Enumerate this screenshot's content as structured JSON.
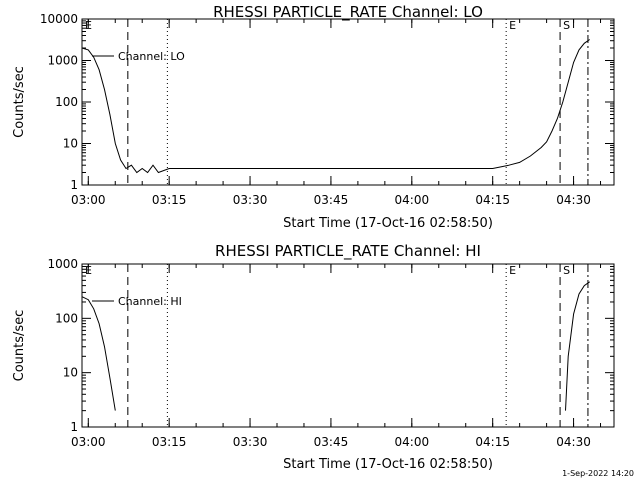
{
  "chart_data": [
    {
      "type": "line",
      "title": "RHESSI PARTICLE_RATE Channel: LO",
      "xlabel": "Start Time (17-Oct-16 02:58:50)",
      "ylabel": "Counts/sec",
      "yscale": "log",
      "ylim": [
        1,
        10000
      ],
      "xlim": [
        "02:58:50",
        "04:37:30"
      ],
      "x_ticks": [
        "03:00",
        "03:15",
        "03:30",
        "03:45",
        "04:00",
        "04:15",
        "04:30"
      ],
      "y_ticks": [
        "1",
        "10",
        "100",
        "1000",
        "10000"
      ],
      "legend": {
        "position": "top-left",
        "entries": [
          "Channel: LO"
        ]
      },
      "series": [
        {
          "name": "Channel: LO",
          "x": [
            "02:58:50",
            "03:00:00",
            "03:01:00",
            "03:02:00",
            "03:03:00",
            "03:04:00",
            "03:05:00",
            "03:06:00",
            "03:07:00",
            "03:08:00",
            "03:09:00",
            "03:10:00",
            "03:11:00",
            "03:12:00",
            "03:13:00",
            "03:15:00",
            "03:20:00",
            "03:25:00",
            "03:30:00",
            "03:35:00",
            "03:40:00",
            "03:45:00",
            "03:50:00",
            "03:55:00",
            "04:00:00",
            "04:05:00",
            "04:10:00",
            "04:15:00",
            "04:18:00",
            "04:20:00",
            "04:22:00",
            "04:24:00",
            "04:25:00",
            "04:26:00",
            "04:27:00",
            "04:28:00",
            "04:29:00",
            "04:30:00",
            "04:31:00",
            "04:32:00",
            "04:33:00"
          ],
          "y": [
            2000,
            1800,
            1200,
            600,
            200,
            50,
            10,
            4,
            2.5,
            3,
            2,
            2.5,
            2,
            3,
            2,
            2.5,
            2.5,
            2.5,
            2.5,
            2.5,
            2.5,
            2.5,
            2.5,
            2.5,
            2.5,
            2.5,
            2.5,
            2.5,
            3,
            3.5,
            5,
            8,
            11,
            20,
            40,
            100,
            300,
            900,
            1800,
            2600,
            3200
          ]
        }
      ],
      "markers": [
        {
          "label": "E",
          "time": "02:58:50",
          "style": "dashed"
        },
        {
          "label": "",
          "time": "03:07:20",
          "style": "dashed"
        },
        {
          "label": "",
          "time": "03:14:40",
          "style": "dotted"
        },
        {
          "label": "E",
          "time": "04:17:30",
          "style": "dotted"
        },
        {
          "label": "S",
          "time": "04:27:30",
          "style": "dashed"
        },
        {
          "label": "",
          "time": "04:32:40",
          "style": "dashdot"
        }
      ]
    },
    {
      "type": "line",
      "title": "RHESSI PARTICLE_RATE Channel: HI",
      "xlabel": "Start Time (17-Oct-16 02:58:50)",
      "ylabel": "Counts/sec",
      "yscale": "log",
      "ylim": [
        1,
        1000
      ],
      "xlim": [
        "02:58:50",
        "04:37:30"
      ],
      "x_ticks": [
        "03:00",
        "03:15",
        "03:30",
        "03:45",
        "04:00",
        "04:15",
        "04:30"
      ],
      "y_ticks": [
        "1",
        "10",
        "100",
        "1000"
      ],
      "legend": {
        "position": "top-left",
        "entries": [
          "Channel: HI"
        ]
      },
      "series": [
        {
          "name": "Channel: HI",
          "x": [
            "02:58:50",
            "03:00:00",
            "03:01:00",
            "03:02:00",
            "03:03:00",
            "03:04:00",
            "03:05:00",
            "04:28:30",
            "04:29:00",
            "04:30:00",
            "04:31:00",
            "04:32:00",
            "04:33:00"
          ],
          "y": [
            250,
            220,
            150,
            80,
            30,
            8,
            2,
            2,
            20,
            120,
            280,
            400,
            470
          ]
        }
      ],
      "markers": [
        {
          "label": "E",
          "time": "02:58:50",
          "style": "dashed"
        },
        {
          "label": "",
          "time": "03:07:20",
          "style": "dashed"
        },
        {
          "label": "",
          "time": "03:14:40",
          "style": "dotted"
        },
        {
          "label": "E",
          "time": "04:17:30",
          "style": "dotted"
        },
        {
          "label": "S",
          "time": "04:27:30",
          "style": "dashed"
        },
        {
          "label": "",
          "time": "04:32:40",
          "style": "dashdot"
        }
      ]
    }
  ],
  "footer": "1-Sep-2022 14:20"
}
